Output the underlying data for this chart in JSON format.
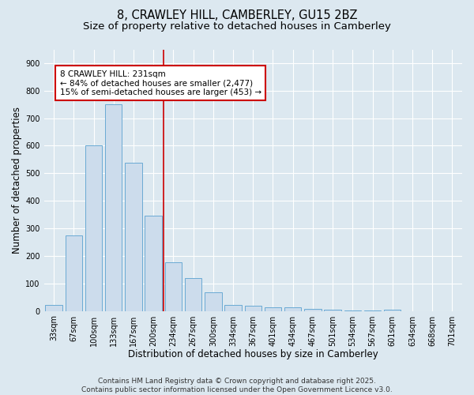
{
  "title_line1": "8, CRAWLEY HILL, CAMBERLEY, GU15 2BZ",
  "title_line2": "Size of property relative to detached houses in Camberley",
  "xlabel": "Distribution of detached houses by size in Camberley",
  "ylabel": "Number of detached properties",
  "categories": [
    "33sqm",
    "67sqm",
    "100sqm",
    "133sqm",
    "167sqm",
    "200sqm",
    "234sqm",
    "267sqm",
    "300sqm",
    "334sqm",
    "367sqm",
    "401sqm",
    "434sqm",
    "467sqm",
    "501sqm",
    "534sqm",
    "567sqm",
    "601sqm",
    "634sqm",
    "668sqm",
    "701sqm"
  ],
  "values": [
    22,
    275,
    600,
    750,
    538,
    345,
    178,
    118,
    68,
    22,
    20,
    12,
    12,
    8,
    6,
    3,
    1,
    5,
    0,
    0,
    0
  ],
  "bar_color": "#ccdcec",
  "bar_edge_color": "#6aaad4",
  "vline_x_index": 5.5,
  "vline_color": "#cc0000",
  "annotation_text": "8 CRAWLEY HILL: 231sqm\n← 84% of detached houses are smaller (2,477)\n15% of semi-detached houses are larger (453) →",
  "annotation_box_facecolor": "#ffffff",
  "annotation_box_edgecolor": "#cc0000",
  "ylim": [
    0,
    950
  ],
  "yticks": [
    0,
    100,
    200,
    300,
    400,
    500,
    600,
    700,
    800,
    900
  ],
  "fig_bg_color": "#dce8f0",
  "plot_bg_color": "#dce8f0",
  "grid_color": "#ffffff",
  "footer_line1": "Contains HM Land Registry data © Crown copyright and database right 2025.",
  "footer_line2": "Contains public sector information licensed under the Open Government Licence v3.0.",
  "title_fontsize": 10.5,
  "subtitle_fontsize": 9.5,
  "axis_label_fontsize": 8.5,
  "tick_fontsize": 7,
  "annotation_fontsize": 7.5,
  "footer_fontsize": 6.5
}
